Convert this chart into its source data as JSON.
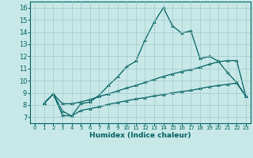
{
  "xlabel": "Humidex (Indice chaleur)",
  "bg_color": "#c8e8e8",
  "grid_color": "#a0c8c8",
  "line_color": "#006060",
  "xlim": [
    -0.5,
    23.5
  ],
  "ylim": [
    6.5,
    16.5
  ],
  "xticks": [
    0,
    1,
    2,
    3,
    4,
    5,
    6,
    7,
    8,
    9,
    10,
    11,
    12,
    13,
    14,
    15,
    16,
    17,
    18,
    19,
    20,
    21,
    22,
    23
  ],
  "yticks": [
    7,
    8,
    9,
    10,
    11,
    12,
    13,
    14,
    15,
    16
  ],
  "line1_x": [
    1,
    2,
    3,
    4,
    5,
    6,
    7,
    8,
    9,
    10,
    11,
    12,
    13,
    14,
    15,
    16,
    17,
    18,
    19,
    20,
    21,
    22,
    23
  ],
  "line1_y": [
    8.15,
    8.9,
    7.15,
    7.1,
    8.1,
    8.25,
    8.8,
    9.6,
    10.3,
    11.15,
    11.6,
    13.35,
    14.8,
    16.0,
    14.5,
    13.9,
    14.1,
    11.8,
    12.0,
    11.6,
    10.65,
    9.85,
    8.7
  ],
  "line2_x": [
    1,
    2,
    3,
    4,
    5,
    6,
    7,
    8,
    9,
    10,
    11,
    12,
    13,
    14,
    15,
    16,
    17,
    18,
    19,
    20,
    21,
    22,
    23
  ],
  "line2_y": [
    8.15,
    8.9,
    8.1,
    8.1,
    8.25,
    8.45,
    8.7,
    8.9,
    9.15,
    9.4,
    9.6,
    9.85,
    10.1,
    10.35,
    10.55,
    10.75,
    10.9,
    11.1,
    11.35,
    11.55,
    11.65,
    11.65,
    8.7
  ],
  "line3_x": [
    1,
    2,
    3,
    4,
    5,
    6,
    7,
    8,
    9,
    10,
    11,
    12,
    13,
    14,
    15,
    16,
    17,
    18,
    19,
    20,
    21,
    22,
    23
  ],
  "line3_y": [
    8.15,
    8.9,
    7.5,
    7.1,
    7.55,
    7.7,
    7.85,
    8.05,
    8.2,
    8.35,
    8.5,
    8.6,
    8.75,
    8.85,
    9.0,
    9.1,
    9.2,
    9.35,
    9.5,
    9.6,
    9.7,
    9.8,
    8.7
  ]
}
